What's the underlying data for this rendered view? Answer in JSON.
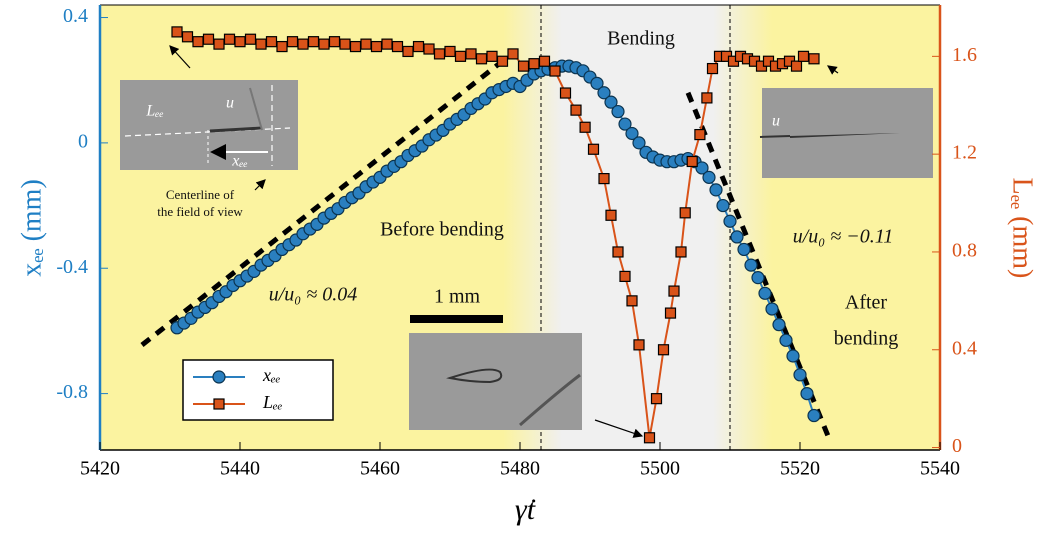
{
  "chart_data": {
    "type": "line",
    "x_label": "γ̇t",
    "y_label": "xₑₑ (mm)",
    "y2_label": "Lₑₑ (mm)",
    "xlim": [
      5420,
      5540
    ],
    "xticks": [
      5420,
      5440,
      5460,
      5480,
      5500,
      5520,
      5540
    ],
    "ylim": [
      -0.98,
      0.44
    ],
    "yticks": [
      0.4,
      0,
      -0.4,
      -0.8
    ],
    "y_color": "#1f7fc4",
    "y2lim": [
      -0.01,
      1.81
    ],
    "y2ticks": [
      0,
      0.4,
      0.8,
      1.2,
      1.6
    ],
    "y2_color": "#d9541a",
    "legend": "lower left",
    "vlines": [
      5483,
      5510
    ],
    "series": [
      {
        "name": "xₑₑ",
        "color": "#2a7fbf",
        "marker": "circle",
        "x": [
          5431,
          5432,
          5433,
          5434,
          5435,
          5436,
          5437,
          5438,
          5439,
          5440,
          5441,
          5442,
          5443,
          5444,
          5445,
          5446,
          5447,
          5448,
          5449,
          5450,
          5451,
          5452,
          5453,
          5454,
          5455,
          5456,
          5457,
          5458,
          5459,
          5460,
          5461,
          5462,
          5463,
          5464,
          5465,
          5466,
          5467,
          5468,
          5469,
          5470,
          5471,
          5472,
          5473,
          5474,
          5475,
          5476,
          5477,
          5478,
          5479,
          5480,
          5481,
          5482,
          5483,
          5484,
          5485,
          5486,
          5487,
          5488,
          5489,
          5490,
          5491,
          5492,
          5493,
          5494,
          5495,
          5496,
          5497,
          5498,
          5499,
          5500,
          5501,
          5502,
          5503,
          5504,
          5505,
          5506,
          5507,
          5508,
          5509,
          5510,
          5511,
          5512,
          5513,
          5514,
          5515,
          5516,
          5517,
          5518,
          5519,
          5520,
          5521,
          5522
        ],
        "values": [
          -0.59,
          -0.575,
          -0.56,
          -0.54,
          -0.525,
          -0.51,
          -0.49,
          -0.475,
          -0.455,
          -0.44,
          -0.425,
          -0.41,
          -0.39,
          -0.375,
          -0.36,
          -0.34,
          -0.325,
          -0.31,
          -0.29,
          -0.275,
          -0.26,
          -0.24,
          -0.225,
          -0.21,
          -0.19,
          -0.175,
          -0.16,
          -0.14,
          -0.125,
          -0.11,
          -0.09,
          -0.075,
          -0.06,
          -0.04,
          -0.025,
          -0.01,
          0.01,
          0.025,
          0.04,
          0.06,
          0.075,
          0.09,
          0.11,
          0.125,
          0.14,
          0.16,
          0.17,
          0.18,
          0.19,
          0.18,
          0.2,
          0.22,
          0.23,
          0.235,
          0.24,
          0.245,
          0.245,
          0.24,
          0.23,
          0.21,
          0.19,
          0.16,
          0.13,
          0.1,
          0.06,
          0.03,
          0.0,
          -0.03,
          -0.045,
          -0.055,
          -0.06,
          -0.06,
          -0.055,
          -0.05,
          -0.06,
          -0.08,
          -0.11,
          -0.15,
          -0.2,
          -0.25,
          -0.3,
          -0.34,
          -0.39,
          -0.43,
          -0.48,
          -0.53,
          -0.58,
          -0.63,
          -0.68,
          -0.74,
          -0.8,
          -0.87
        ]
      },
      {
        "name": "Lₑₑ",
        "color": "#d95319",
        "marker": "square",
        "axis": "y2",
        "x": [
          5431,
          5432.5,
          5434,
          5435.5,
          5437,
          5438.5,
          5440,
          5441.5,
          5443,
          5444.5,
          5446,
          5447.5,
          5449,
          5450.5,
          5452,
          5453.5,
          5455,
          5456.5,
          5458,
          5459.5,
          5461,
          5462.5,
          5464,
          5465.5,
          5467,
          5468.5,
          5470,
          5471.5,
          5473,
          5474.5,
          5476,
          5477.5,
          5479,
          5480.5,
          5482,
          5483.5,
          5485,
          5486.5,
          5488,
          5489.3,
          5490.5,
          5492,
          5493,
          5494,
          5495,
          5496,
          5497,
          5498.5,
          5499.5,
          5500.5,
          5501.5,
          5502,
          5503,
          5503.6,
          5504.6,
          5505.7,
          5506.7,
          5507.5,
          5508.5,
          5509.5,
          5510.5,
          5511.5,
          5512.5,
          5513.5,
          5514.5,
          5515.5,
          5516.5,
          5517.5,
          5518.5,
          5519.5,
          5520.5,
          5522
        ],
        "values": [
          1.7,
          1.68,
          1.66,
          1.67,
          1.65,
          1.67,
          1.66,
          1.67,
          1.65,
          1.66,
          1.64,
          1.66,
          1.65,
          1.66,
          1.65,
          1.66,
          1.65,
          1.64,
          1.65,
          1.64,
          1.65,
          1.64,
          1.62,
          1.64,
          1.63,
          1.61,
          1.62,
          1.6,
          1.61,
          1.59,
          1.6,
          1.58,
          1.61,
          1.56,
          1.57,
          1.58,
          1.54,
          1.45,
          1.38,
          1.31,
          1.22,
          1.1,
          0.95,
          0.8,
          0.7,
          0.6,
          0.42,
          0.04,
          0.2,
          0.4,
          0.55,
          0.64,
          0.8,
          0.96,
          1.17,
          1.28,
          1.43,
          1.55,
          1.6,
          1.6,
          1.58,
          1.6,
          1.59,
          1.58,
          1.56,
          1.58,
          1.56,
          1.57,
          1.58,
          1.56,
          1.6,
          1.59
        ]
      }
    ],
    "fits": [
      {
        "x": [
          5426,
          5478
        ],
        "values": [
          -0.645,
          0.27
        ]
      },
      {
        "x": [
          5504,
          5524
        ],
        "values": [
          0.16,
          -0.935
        ]
      }
    ],
    "annotations": [
      "Bending",
      "Before bending",
      "After",
      "bending",
      "u/u₀ ≈ 0.04",
      "u/u₀ ≈ −0.11",
      "1 mm",
      "Centerline of",
      "the field of view",
      "Lₑₑ",
      "u",
      "xₑₑ",
      "u"
    ]
  }
}
